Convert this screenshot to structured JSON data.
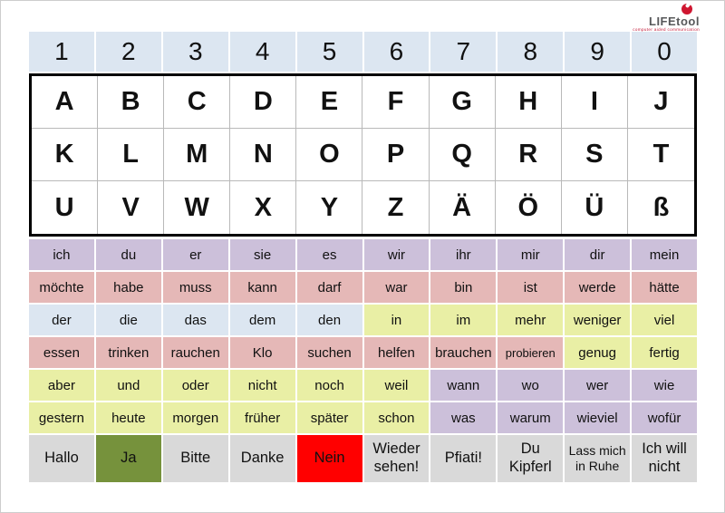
{
  "logo": {
    "brand": "LIFEtool",
    "tagline": "computer aided communication",
    "icon": "power-circle-icon",
    "brand_color": "#57585a",
    "accent_color": "#cf1630"
  },
  "colors": {
    "blue": "#dce6f1",
    "purple": "#ccc0da",
    "pink": "#e5b8b7",
    "yellow": "#e9efa5",
    "gray": "#d9d9d9",
    "green": "#76923c",
    "red": "#ff0000",
    "white": "#ffffff"
  },
  "numbers": {
    "color": "blue",
    "cells": [
      "1",
      "2",
      "3",
      "4",
      "5",
      "6",
      "7",
      "8",
      "9",
      "0"
    ]
  },
  "letters": {
    "rows": [
      [
        "A",
        "B",
        "C",
        "D",
        "E",
        "F",
        "G",
        "H",
        "I",
        "J"
      ],
      [
        "K",
        "L",
        "M",
        "N",
        "O",
        "P",
        "Q",
        "R",
        "S",
        "T"
      ],
      [
        "U",
        "V",
        "W",
        "X",
        "Y",
        "Z",
        "Ä",
        "Ö",
        "Ü",
        "ß"
      ]
    ]
  },
  "word_rows": [
    {
      "cells": [
        {
          "t": "ich",
          "c": "purple"
        },
        {
          "t": "du",
          "c": "purple"
        },
        {
          "t": "er",
          "c": "purple"
        },
        {
          "t": "sie",
          "c": "purple"
        },
        {
          "t": "es",
          "c": "purple"
        },
        {
          "t": "wir",
          "c": "purple"
        },
        {
          "t": "ihr",
          "c": "purple"
        },
        {
          "t": "mir",
          "c": "purple"
        },
        {
          "t": "dir",
          "c": "purple"
        },
        {
          "t": "mein",
          "c": "purple"
        }
      ]
    },
    {
      "cells": [
        {
          "t": "möchte",
          "c": "pink"
        },
        {
          "t": "habe",
          "c": "pink"
        },
        {
          "t": "muss",
          "c": "pink"
        },
        {
          "t": "kann",
          "c": "pink"
        },
        {
          "t": "darf",
          "c": "pink"
        },
        {
          "t": "war",
          "c": "pink"
        },
        {
          "t": "bin",
          "c": "pink"
        },
        {
          "t": "ist",
          "c": "pink"
        },
        {
          "t": "werde",
          "c": "pink"
        },
        {
          "t": "hätte",
          "c": "pink"
        }
      ]
    },
    {
      "cells": [
        {
          "t": "der",
          "c": "blue"
        },
        {
          "t": "die",
          "c": "blue"
        },
        {
          "t": "das",
          "c": "blue"
        },
        {
          "t": "dem",
          "c": "blue"
        },
        {
          "t": "den",
          "c": "blue"
        },
        {
          "t": "in",
          "c": "yellow"
        },
        {
          "t": "im",
          "c": "yellow"
        },
        {
          "t": "mehr",
          "c": "yellow"
        },
        {
          "t": "weniger",
          "c": "yellow"
        },
        {
          "t": "viel",
          "c": "yellow"
        }
      ]
    },
    {
      "cells": [
        {
          "t": "essen",
          "c": "pink"
        },
        {
          "t": "trinken",
          "c": "pink"
        },
        {
          "t": "rauchen",
          "c": "pink"
        },
        {
          "t": "Klo",
          "c": "pink"
        },
        {
          "t": "suchen",
          "c": "pink"
        },
        {
          "t": "helfen",
          "c": "pink"
        },
        {
          "t": "brauchen",
          "c": "pink"
        },
        {
          "t": "probieren",
          "c": "pink",
          "small": true
        },
        {
          "t": "genug",
          "c": "yellow"
        },
        {
          "t": "fertig",
          "c": "yellow"
        }
      ]
    },
    {
      "cells": [
        {
          "t": "aber",
          "c": "yellow"
        },
        {
          "t": "und",
          "c": "yellow"
        },
        {
          "t": "oder",
          "c": "yellow"
        },
        {
          "t": "nicht",
          "c": "yellow"
        },
        {
          "t": "noch",
          "c": "yellow"
        },
        {
          "t": "weil",
          "c": "yellow"
        },
        {
          "t": "wann",
          "c": "purple"
        },
        {
          "t": "wo",
          "c": "purple"
        },
        {
          "t": "wer",
          "c": "purple"
        },
        {
          "t": "wie",
          "c": "purple"
        }
      ]
    },
    {
      "cells": [
        {
          "t": "gestern",
          "c": "yellow"
        },
        {
          "t": "heute",
          "c": "yellow"
        },
        {
          "t": "morgen",
          "c": "yellow"
        },
        {
          "t": "früher",
          "c": "yellow"
        },
        {
          "t": "später",
          "c": "yellow"
        },
        {
          "t": "schon",
          "c": "yellow"
        },
        {
          "t": "was",
          "c": "purple"
        },
        {
          "t": "warum",
          "c": "purple"
        },
        {
          "t": "wieviel",
          "c": "purple"
        },
        {
          "t": "wofür",
          "c": "purple"
        }
      ]
    }
  ],
  "phrase_row": [
    {
      "t": "Hallo",
      "c": "gray"
    },
    {
      "t": "Ja",
      "c": "green"
    },
    {
      "t": "Bitte",
      "c": "gray"
    },
    {
      "t": "Danke",
      "c": "gray"
    },
    {
      "t": "Nein",
      "c": "red"
    },
    {
      "t": "Wieder sehen!",
      "c": "gray"
    },
    {
      "t": "Pfiati!",
      "c": "gray"
    },
    {
      "t": "Du Kipferl",
      "c": "gray"
    },
    {
      "t": "Lass mich in Ruhe",
      "c": "gray",
      "small": true
    },
    {
      "t": "Ich will nicht",
      "c": "gray"
    }
  ]
}
